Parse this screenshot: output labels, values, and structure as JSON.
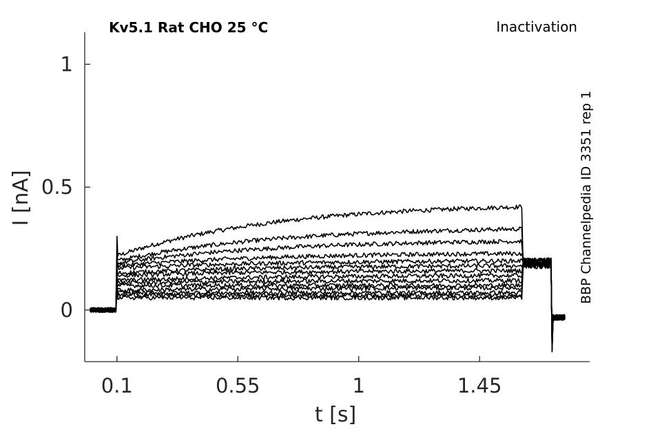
{
  "chart_data": {
    "type": "line",
    "title": "Kv5.1  Rat  CHO  25 °C",
    "protocol_label": "Inactivation",
    "side_label": "BBP Channelpedia ID 3351 rep 1",
    "xlabel": "t [s]",
    "ylabel": "I [nA]",
    "xlim": [
      -0.02,
      1.86
    ],
    "ylim": [
      -0.21,
      1.13
    ],
    "xticks": [
      0.1,
      0.55,
      1,
      1.45
    ],
    "xtick_labels": [
      "0.1",
      "0.55",
      "1",
      "1.45"
    ],
    "yticks": [
      0,
      0.5,
      1
    ],
    "ytick_labels": [
      "0",
      "0.5",
      "1"
    ],
    "grid": false,
    "legend": "none",
    "line_color": "#000000",
    "sweep_timing": {
      "baseline_start": 0.0,
      "step_on": 0.1,
      "step_off": 1.61,
      "tail_off": 1.72,
      "end": 1.77
    },
    "series": [
      {
        "start_value": 0.22,
        "end_value": 0.42,
        "tail_value": 0.2,
        "after_tail_value": -0.03
      },
      {
        "start_value": 0.2,
        "end_value": 0.33,
        "tail_value": 0.2,
        "after_tail_value": -0.03
      },
      {
        "start_value": 0.19,
        "end_value": 0.28,
        "tail_value": 0.2,
        "after_tail_value": -0.03
      },
      {
        "start_value": 0.18,
        "end_value": 0.23,
        "tail_value": 0.2,
        "after_tail_value": -0.03
      },
      {
        "start_value": 0.17,
        "end_value": 0.2,
        "tail_value": 0.2,
        "after_tail_value": -0.03
      },
      {
        "start_value": 0.15,
        "end_value": 0.18,
        "tail_value": 0.19,
        "after_tail_value": -0.03
      },
      {
        "start_value": 0.14,
        "end_value": 0.16,
        "tail_value": 0.19,
        "after_tail_value": -0.03
      },
      {
        "start_value": 0.12,
        "end_value": 0.14,
        "tail_value": 0.19,
        "after_tail_value": -0.03
      },
      {
        "start_value": 0.11,
        "end_value": 0.12,
        "tail_value": 0.19,
        "after_tail_value": -0.03
      },
      {
        "start_value": 0.1,
        "end_value": 0.1,
        "tail_value": 0.19,
        "after_tail_value": -0.03
      },
      {
        "start_value": 0.08,
        "end_value": 0.09,
        "tail_value": 0.18,
        "after_tail_value": -0.03
      },
      {
        "start_value": 0.07,
        "end_value": 0.07,
        "tail_value": 0.18,
        "after_tail_value": -0.03
      },
      {
        "start_value": 0.06,
        "end_value": 0.06,
        "tail_value": 0.18,
        "after_tail_value": -0.03
      },
      {
        "start_value": 0.05,
        "end_value": 0.05,
        "tail_value": 0.18,
        "after_tail_value": -0.03
      }
    ],
    "annotations": {
      "onset_spike_peak": 0.3,
      "tail_onset_min": -0.17
    }
  }
}
